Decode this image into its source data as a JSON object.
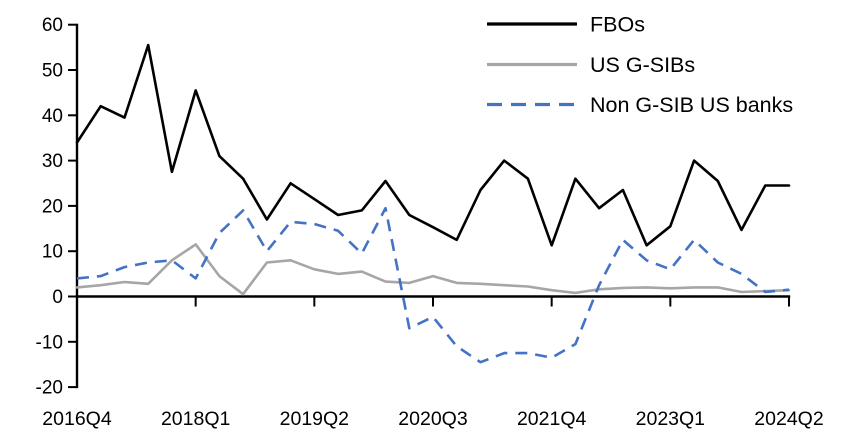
{
  "chart_data": {
    "type": "line",
    "title": "",
    "background": "#ffffff",
    "grid": false,
    "legend_position": "top-right",
    "categories": [
      "2016Q4",
      "2017Q1",
      "2017Q2",
      "2017Q3",
      "2017Q4",
      "2018Q1",
      "2018Q2",
      "2018Q3",
      "2018Q4",
      "2019Q1",
      "2019Q2",
      "2019Q3",
      "2019Q4",
      "2020Q1",
      "2020Q2",
      "2020Q3",
      "2020Q4",
      "2021Q1",
      "2021Q2",
      "2021Q3",
      "2021Q4",
      "2022Q1",
      "2022Q2",
      "2022Q3",
      "2022Q4",
      "2023Q1",
      "2023Q2",
      "2023Q3",
      "2023Q4",
      "2024Q1",
      "2024Q2"
    ],
    "x_tick_labels": [
      "2016Q4",
      "2018Q1",
      "2019Q2",
      "2020Q3",
      "2021Q4",
      "2023Q1",
      "2024Q2"
    ],
    "x_tick_indices": [
      0,
      5,
      10,
      15,
      20,
      25,
      30
    ],
    "y_axis": {
      "min": -20,
      "max": 60,
      "step": 10,
      "tick_labels": [
        "60",
        "50",
        "40",
        "30",
        "20",
        "10",
        "0",
        "-10",
        "-20"
      ]
    },
    "series": [
      {
        "name": "FBOs",
        "color": "#000000",
        "line_style": "solid",
        "values": [
          34,
          42,
          39.5,
          55.5,
          27.5,
          45.5,
          31,
          26,
          17,
          25,
          21.5,
          18,
          19,
          25.5,
          18,
          15.3,
          12.5,
          23.5,
          30,
          26,
          11.3,
          26,
          19.5,
          23.5,
          11.3,
          15.5,
          30,
          25.5,
          14.7,
          24.5,
          24.5
        ]
      },
      {
        "name": "US G-SIBs",
        "color": "#a6a6a6",
        "line_style": "solid",
        "values": [
          2,
          2.5,
          3.2,
          2.8,
          8,
          11.5,
          4.5,
          0.5,
          7.5,
          8,
          6,
          5,
          5.5,
          3.3,
          3,
          4.5,
          3,
          2.8,
          2.5,
          2.2,
          1.4,
          0.8,
          1.6,
          1.9,
          2,
          1.8,
          2,
          2,
          1,
          1.2,
          1.4
        ]
      },
      {
        "name": "Non G-SIB US banks",
        "color": "#4472c4",
        "line_style": "dashed",
        "values": [
          4,
          4.5,
          6.5,
          7.5,
          8,
          4,
          14,
          19,
          10,
          16.5,
          16,
          14.5,
          9.5,
          19.5,
          -7,
          -4.5,
          -11,
          -14.5,
          -12.5,
          -12.5,
          -13.5,
          -10.5,
          2.5,
          12.5,
          8,
          6,
          12.5,
          7.5,
          5,
          1,
          1.5
        ]
      }
    ]
  }
}
